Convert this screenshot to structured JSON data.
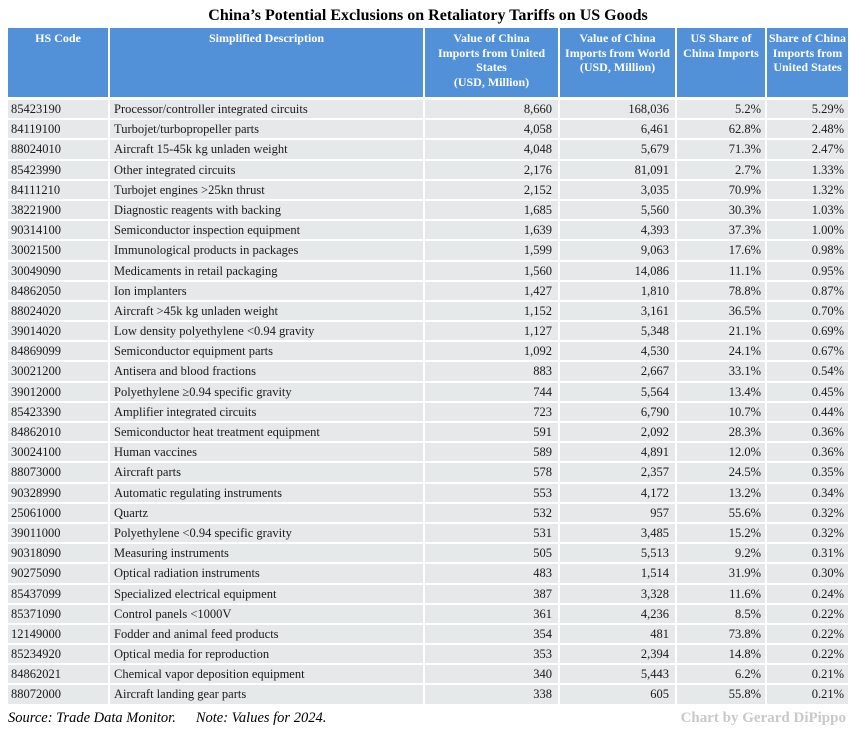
{
  "title": "China’s Potential Exclusions on Retaliatory Tariffs on US Goods",
  "colors": {
    "header_bg": "#5291d8",
    "header_text": "#ffffff",
    "row_bg": "#e6e9ea",
    "row_separator": "#ffffff",
    "credit_text": "#c9c9c9"
  },
  "chart_data": {
    "type": "table",
    "title": "China’s Potential Exclusions on Retaliatory Tariffs on US Goods",
    "columns": [
      "HS Code",
      "Simplified Description",
      "Value of China\nImports from United\nStates\n(USD, Million)",
      "Value of China\nImports from World\n(USD, Million)",
      "US Share of\nChina Imports",
      "Share of China\nImports from\nUnited States"
    ],
    "rows": [
      [
        "85423190",
        "Processor/controller integrated circuits",
        "8,660",
        "168,036",
        "5.2%",
        "5.29%"
      ],
      [
        "84119100",
        "Turbojet/turbopropeller parts",
        "4,058",
        "6,461",
        "62.8%",
        "2.48%"
      ],
      [
        "88024010",
        "Aircraft 15-45k kg unladen weight",
        "4,048",
        "5,679",
        "71.3%",
        "2.47%"
      ],
      [
        "85423990",
        "Other integrated circuits",
        "2,176",
        "81,091",
        "2.7%",
        "1.33%"
      ],
      [
        "84111210",
        "Turbojet engines >25kn thrust",
        "2,152",
        "3,035",
        "70.9%",
        "1.32%"
      ],
      [
        "38221900",
        "Diagnostic reagents with backing",
        "1,685",
        "5,560",
        "30.3%",
        "1.03%"
      ],
      [
        "90314100",
        "Semiconductor inspection equipment",
        "1,639",
        "4,393",
        "37.3%",
        "1.00%"
      ],
      [
        "30021500",
        "Immunological products in packages",
        "1,599",
        "9,063",
        "17.6%",
        "0.98%"
      ],
      [
        "30049090",
        "Medicaments in retail packaging",
        "1,560",
        "14,086",
        "11.1%",
        "0.95%"
      ],
      [
        "84862050",
        "Ion implanters",
        "1,427",
        "1,810",
        "78.8%",
        "0.87%"
      ],
      [
        "88024020",
        "Aircraft >45k kg unladen weight",
        "1,152",
        "3,161",
        "36.5%",
        "0.70%"
      ],
      [
        "39014020",
        "Low density polyethylene <0.94 gravity",
        "1,127",
        "5,348",
        "21.1%",
        "0.69%"
      ],
      [
        "84869099",
        "Semiconductor equipment parts",
        "1,092",
        "4,530",
        "24.1%",
        "0.67%"
      ],
      [
        "30021200",
        "Antisera and blood fractions",
        "883",
        "2,667",
        "33.1%",
        "0.54%"
      ],
      [
        "39012000",
        "Polyethylene ≥0.94 specific gravity",
        "744",
        "5,564",
        "13.4%",
        "0.45%"
      ],
      [
        "85423390",
        "Amplifier integrated circuits",
        "723",
        "6,790",
        "10.7%",
        "0.44%"
      ],
      [
        "84862010",
        "Semiconductor heat treatment equipment",
        "591",
        "2,092",
        "28.3%",
        "0.36%"
      ],
      [
        "30024100",
        "Human vaccines",
        "589",
        "4,891",
        "12.0%",
        "0.36%"
      ],
      [
        "88073000",
        "Aircraft parts",
        "578",
        "2,357",
        "24.5%",
        "0.35%"
      ],
      [
        "90328990",
        "Automatic regulating instruments",
        "553",
        "4,172",
        "13.2%",
        "0.34%"
      ],
      [
        "25061000",
        "Quartz",
        "532",
        "957",
        "55.6%",
        "0.32%"
      ],
      [
        "39011000",
        "Polyethylene <0.94 specific gravity",
        "531",
        "3,485",
        "15.2%",
        "0.32%"
      ],
      [
        "90318090",
        "Measuring instruments",
        "505",
        "5,513",
        "9.2%",
        "0.31%"
      ],
      [
        "90275090",
        "Optical radiation instruments",
        "483",
        "1,514",
        "31.9%",
        "0.30%"
      ],
      [
        "85437099",
        "Specialized electrical equipment",
        "387",
        "3,328",
        "11.6%",
        "0.24%"
      ],
      [
        "85371090",
        "Control panels <1000V",
        "361",
        "4,236",
        "8.5%",
        "0.22%"
      ],
      [
        "12149000",
        "Fodder and animal feed products",
        "354",
        "481",
        "73.8%",
        "0.22%"
      ],
      [
        "85234920",
        "Optical media for reproduction",
        "353",
        "2,394",
        "14.8%",
        "0.22%"
      ],
      [
        "84862021",
        "Chemical vapor deposition equipment",
        "340",
        "5,443",
        "6.2%",
        "0.21%"
      ],
      [
        "88072000",
        "Aircraft landing gear parts",
        "338",
        "605",
        "55.8%",
        "0.21%"
      ]
    ]
  },
  "footer": {
    "source": "Source: Trade Data Monitor.",
    "note": "Note: Values for 2024.",
    "credit": "Chart by Gerard DiPippo"
  }
}
